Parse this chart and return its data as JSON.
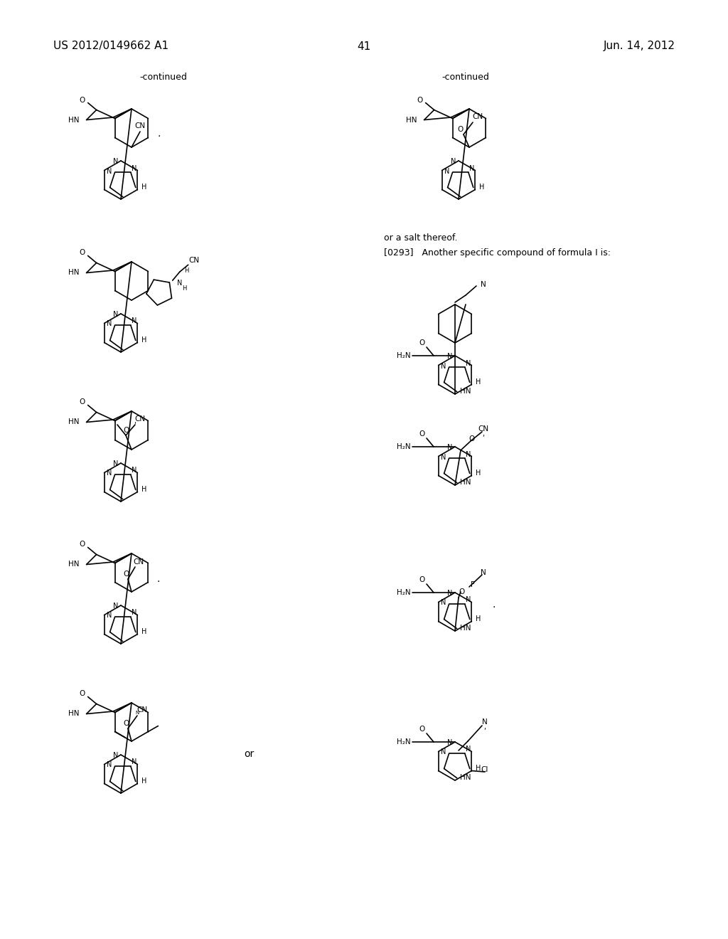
{
  "bg": "#ffffff",
  "header_left": "US 2012/0149662 A1",
  "header_right": "Jun. 14, 2012",
  "page_num": "41",
  "continued_left": "-continued",
  "continued_right": "-continued",
  "text1": "or a salt thereof.",
  "text2": "[0293]   Another specific compound of formula I is:",
  "or_text": "or"
}
